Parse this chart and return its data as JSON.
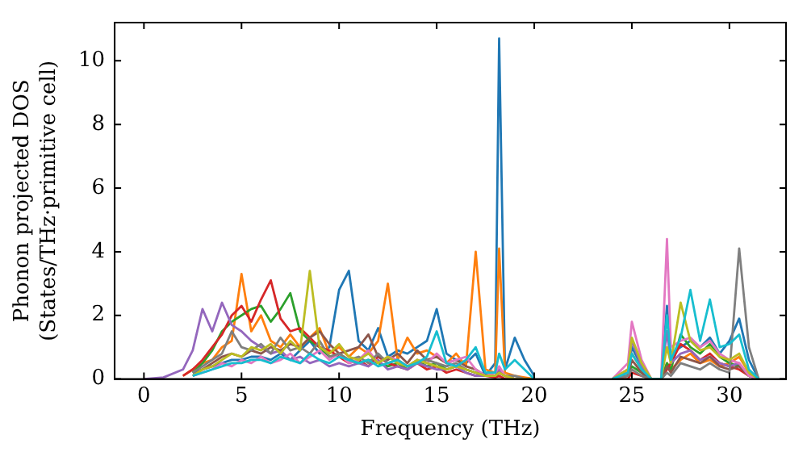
{
  "chart_data": {
    "type": "line",
    "xlabel": "Frequency (THz)",
    "ylabel": "Phonon projected DOS\n(States/THz·primitive cell)",
    "xlim": [
      -1.5,
      32.9
    ],
    "xticks": [
      0,
      5,
      10,
      15,
      20,
      25,
      30
    ],
    "ylim": [
      0,
      11.2
    ],
    "yticks": [
      0,
      2,
      4,
      6,
      8,
      10
    ],
    "grid": false,
    "legend": false,
    "marker": "none",
    "line_style": "solid",
    "x": [
      0,
      1,
      2,
      2.5,
      3,
      3.5,
      4,
      4.5,
      5,
      5.5,
      6,
      6.5,
      7,
      7.5,
      8,
      8.5,
      9,
      9.5,
      10,
      10.5,
      11,
      11.5,
      12,
      12.5,
      13,
      13.5,
      14,
      14.5,
      15,
      15.5,
      16,
      16.5,
      17,
      17.5,
      18,
      18.2,
      18.5,
      19,
      19.5,
      20,
      21,
      24,
      24.8,
      25,
      25.5,
      26,
      26.5,
      26.8,
      27,
      27.5,
      28,
      28.5,
      29,
      29.5,
      30,
      30.5,
      31,
      31.5
    ],
    "series": [
      {
        "color": "#1f77b4",
        "values": [
          null,
          null,
          null,
          0.2,
          0.3,
          0.4,
          0.5,
          0.6,
          0.6,
          0.7,
          0.7,
          0.6,
          0.8,
          0.6,
          0.9,
          1.2,
          0.8,
          1.0,
          2.8,
          3.4,
          1.2,
          0.9,
          1.6,
          0.7,
          0.9,
          0.8,
          1.0,
          1.2,
          2.2,
          0.8,
          0.6,
          0.5,
          0.8,
          0.1,
          0.5,
          10.7,
          0.3,
          1.3,
          0.6,
          0.1,
          null,
          0,
          0.2,
          1.0,
          0.4,
          0,
          0,
          2.3,
          0.8,
          1.0,
          1.2,
          1.0,
          1.3,
          0.8,
          1.2,
          1.9,
          0.6,
          0
        ]
      },
      {
        "color": "#ff7f0e",
        "values": [
          null,
          null,
          0.1,
          0.3,
          0.5,
          0.6,
          1.0,
          1.2,
          3.3,
          1.5,
          2.0,
          1.2,
          1.0,
          1.4,
          1.0,
          1.3,
          1.6,
          0.8,
          1.0,
          0.7,
          1.0,
          0.8,
          1.2,
          3.0,
          0.6,
          1.3,
          0.8,
          0.9,
          0.7,
          0.5,
          0.8,
          0.4,
          4.0,
          0.3,
          0.2,
          4.1,
          0.2,
          0.1,
          0.05,
          0,
          null,
          0,
          0.3,
          0.8,
          0.3,
          0,
          0,
          0.5,
          0.3,
          0.6,
          0.8,
          0.5,
          0.6,
          0.4,
          0.5,
          0.7,
          0.2,
          0
        ]
      },
      {
        "color": "#2ca02c",
        "values": [
          null,
          null,
          null,
          0.2,
          0.5,
          0.9,
          1.5,
          1.8,
          2.0,
          2.2,
          2.3,
          1.8,
          2.2,
          2.7,
          1.5,
          1.2,
          1.0,
          0.7,
          0.8,
          0.6,
          0.5,
          0.6,
          0.5,
          0.4,
          0.5,
          0.3,
          0.6,
          0.4,
          0.5,
          0.3,
          0.4,
          0.3,
          0.2,
          0.1,
          0.1,
          0.2,
          0.1,
          0,
          0,
          0,
          null,
          0,
          0.1,
          0.4,
          0.2,
          0,
          0,
          0.5,
          0.3,
          1.4,
          1.0,
          0.8,
          1.1,
          0.7,
          0.5,
          0.4,
          0.1,
          0
        ]
      },
      {
        "color": "#d62728",
        "values": [
          null,
          null,
          0.1,
          0.3,
          0.6,
          1.0,
          1.4,
          2.0,
          2.3,
          1.8,
          2.5,
          3.1,
          1.9,
          1.5,
          1.6,
          1.3,
          1.0,
          0.9,
          0.7,
          0.5,
          0.6,
          0.4,
          0.7,
          0.5,
          0.4,
          0.3,
          0.5,
          0.3,
          0.4,
          0.2,
          0.3,
          0.2,
          0.1,
          0.1,
          0.05,
          0.1,
          0,
          0,
          0,
          0,
          null,
          0,
          0,
          0.2,
          0.1,
          0,
          0,
          0.3,
          0.5,
          1.1,
          0.9,
          0.6,
          0.8,
          0.5,
          0.4,
          0.3,
          0.1,
          0
        ]
      },
      {
        "color": "#9467bd",
        "values": [
          0,
          0.05,
          0.3,
          0.9,
          2.2,
          1.5,
          2.4,
          1.7,
          1.5,
          1.2,
          1.0,
          0.8,
          0.9,
          0.6,
          0.7,
          0.5,
          0.6,
          0.4,
          0.5,
          0.4,
          0.5,
          0.4,
          0.6,
          0.3,
          0.4,
          0.3,
          0.5,
          0.4,
          0.3,
          0.3,
          0.4,
          0.2,
          0.1,
          0.1,
          0.1,
          0.3,
          0.1,
          0,
          0,
          0,
          null,
          0,
          0.3,
          1.2,
          0.4,
          0,
          0,
          1.5,
          0.5,
          0.8,
          0.9,
          0.6,
          0.7,
          0.5,
          0.4,
          0.5,
          0.1,
          0
        ]
      },
      {
        "color": "#8c564b",
        "values": [
          null,
          null,
          null,
          0.1,
          0.3,
          0.5,
          0.7,
          0.8,
          0.7,
          0.9,
          0.8,
          1.0,
          0.9,
          1.1,
          1.0,
          1.3,
          1.5,
          1.1,
          0.8,
          0.9,
          1.0,
          1.4,
          0.7,
          0.6,
          0.8,
          0.5,
          0.9,
          0.6,
          0.7,
          0.5,
          0.6,
          0.4,
          0.3,
          0.1,
          0.1,
          0.2,
          0.1,
          0,
          0,
          0,
          null,
          0,
          0.1,
          0.6,
          0.2,
          0,
          0,
          0.4,
          0.2,
          0.7,
          0.6,
          0.5,
          0.7,
          0.4,
          0.3,
          0.4,
          0.1,
          0
        ]
      },
      {
        "color": "#e377c2",
        "values": [
          null,
          null,
          null,
          0.1,
          0.2,
          0.3,
          0.5,
          0.4,
          0.6,
          0.5,
          0.7,
          0.5,
          0.6,
          0.8,
          0.5,
          0.7,
          0.9,
          0.6,
          0.8,
          0.5,
          0.6,
          0.9,
          0.5,
          0.7,
          0.6,
          0.4,
          0.6,
          0.5,
          0.8,
          0.5,
          0.6,
          0.7,
          0.3,
          0.1,
          0.2,
          0.4,
          0.1,
          0,
          0,
          0,
          null,
          0,
          0.5,
          1.8,
          0.6,
          0,
          0,
          4.4,
          1.0,
          1.2,
          1.3,
          1.0,
          1.2,
          0.8,
          0.6,
          0.5,
          0.1,
          0
        ]
      },
      {
        "color": "#7f7f7f",
        "values": [
          null,
          null,
          null,
          0.2,
          0.4,
          0.6,
          0.8,
          1.5,
          1.0,
          0.9,
          1.1,
          0.8,
          1.3,
          0.9,
          1.0,
          0.8,
          1.2,
          0.7,
          0.8,
          0.6,
          0.7,
          0.5,
          0.8,
          0.5,
          0.6,
          0.4,
          0.5,
          0.6,
          0.5,
          0.4,
          0.5,
          0.3,
          0.2,
          0.1,
          0.1,
          0.2,
          0.1,
          0.1,
          0,
          0,
          null,
          0,
          0.1,
          0.3,
          0.1,
          0,
          0,
          0.2,
          0.1,
          0.5,
          0.4,
          0.3,
          0.5,
          0.3,
          0.2,
          4.1,
          1.0,
          0
        ]
      },
      {
        "color": "#bcbd22",
        "values": [
          null,
          null,
          null,
          0.1,
          0.3,
          0.4,
          0.6,
          0.8,
          0.7,
          1.0,
          0.9,
          1.1,
          0.8,
          1.2,
          0.9,
          3.4,
          1.0,
          0.8,
          1.1,
          0.7,
          0.6,
          0.8,
          0.5,
          0.7,
          0.5,
          0.4,
          0.6,
          0.5,
          0.4,
          0.3,
          0.4,
          0.3,
          0.2,
          0.1,
          0.1,
          0.2,
          0.1,
          0,
          0,
          0,
          null,
          0,
          0.3,
          1.3,
          0.5,
          0,
          0,
          1.0,
          0.5,
          2.4,
          1.2,
          0.9,
          1.0,
          0.7,
          0.6,
          0.8,
          0.2,
          0
        ]
      },
      {
        "color": "#17becf",
        "values": [
          null,
          null,
          null,
          0.1,
          0.2,
          0.3,
          0.4,
          0.5,
          0.5,
          0.6,
          0.6,
          0.5,
          0.7,
          0.6,
          0.5,
          0.8,
          0.6,
          0.5,
          0.7,
          0.6,
          0.5,
          0.6,
          0.4,
          0.5,
          0.6,
          0.4,
          0.5,
          0.7,
          1.5,
          0.5,
          0.4,
          0.6,
          1.0,
          0.2,
          0.2,
          0.8,
          0.3,
          0.6,
          0.3,
          0,
          null,
          0,
          0.2,
          0.8,
          0.3,
          0,
          0,
          2.0,
          0.6,
          1.3,
          2.8,
          1.2,
          2.5,
          1.0,
          1.1,
          1.4,
          0.3,
          0
        ]
      }
    ]
  }
}
